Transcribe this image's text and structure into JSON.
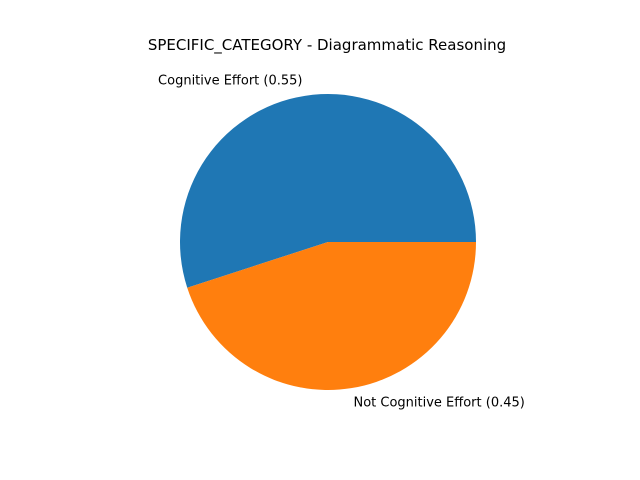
{
  "chart_data": {
    "type": "pie",
    "title": "SPECIFIC_CATEGORY - Diagrammatic Reasoning",
    "slices": [
      {
        "label": "Cognitive Effort (0.55)",
        "value": 0.55,
        "color": "#1f77b4"
      },
      {
        "label": "Not Cognitive Effort (0.45)",
        "value": 0.45,
        "color": "#ff7f0e"
      }
    ],
    "start_angle_deg": 0,
    "direction": "counterclockwise",
    "legend": "none"
  }
}
